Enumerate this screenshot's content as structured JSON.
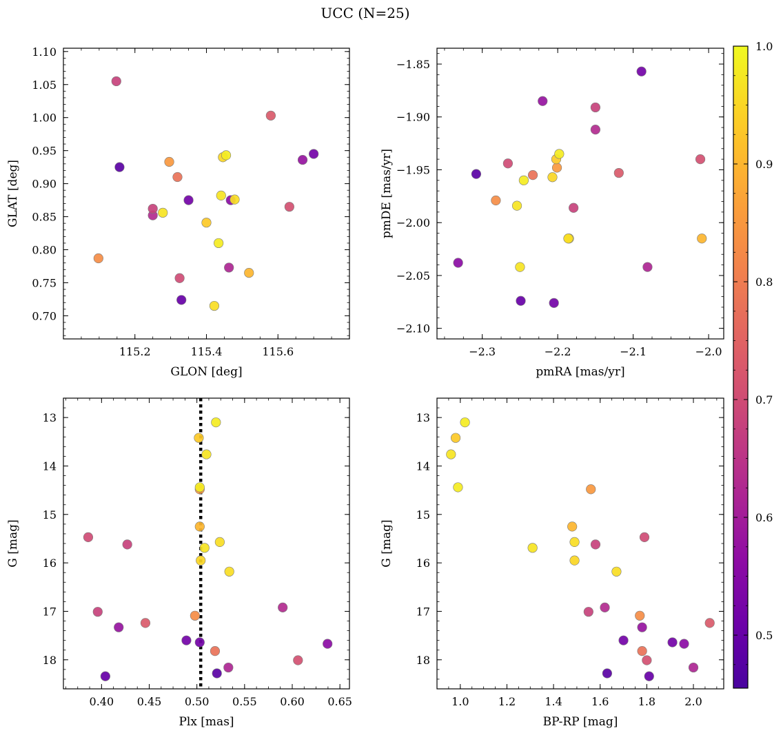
{
  "chart_data": {
    "type": "scatter",
    "title": "UCC (N=25)",
    "colorbar": {
      "colormap": "plasma",
      "range": [
        0.455,
        1.0
      ],
      "ticks": [
        0.5,
        0.6,
        0.7,
        0.8,
        0.9,
        1.0
      ],
      "tick_labels": [
        "0.5",
        "0.6",
        "0.7",
        "0.8",
        "0.9",
        "1.0"
      ],
      "label": ""
    },
    "members": [
      {
        "glon": 115.148,
        "glat": 1.055,
        "pmra": -2.15,
        "pmde": -1.891,
        "plx": 0.427,
        "g": 15.62,
        "bprp": 1.58,
        "prob": 0.68
      },
      {
        "glon": 115.157,
        "glat": 0.925,
        "pmra": -2.308,
        "pmde": -1.954,
        "plx": 0.521,
        "g": 18.28,
        "bprp": 1.63,
        "prob": 0.48
      },
      {
        "glon": 115.098,
        "glat": 0.787,
        "pmra": -2.282,
        "pmde": -1.979,
        "plx": 0.498,
        "g": 17.09,
        "bprp": 1.77,
        "prob": 0.83
      },
      {
        "glon": 115.25,
        "glat": 0.862,
        "pmra": -2.179,
        "pmde": -1.986,
        "plx": 0.396,
        "g": 17.01,
        "bprp": 1.55,
        "prob": 0.68
      },
      {
        "glon": 115.25,
        "glat": 0.852,
        "pmra": -2.15,
        "pmde": -1.912,
        "plx": 0.59,
        "g": 16.92,
        "bprp": 1.62,
        "prob": 0.63
      },
      {
        "glon": 115.278,
        "glat": 0.856,
        "pmra": -2.254,
        "pmde": -1.984,
        "plx": 0.51,
        "g": 13.76,
        "bprp": 0.96,
        "prob": 0.97
      },
      {
        "glon": 115.296,
        "glat": 0.933,
        "pmra": -2.201,
        "pmde": -1.948,
        "plx": 0.503,
        "g": 14.48,
        "bprp": 1.56,
        "prob": 0.85
      },
      {
        "glon": 115.319,
        "glat": 0.91,
        "pmra": -2.233,
        "pmde": -1.955,
        "plx": 0.519,
        "g": 17.82,
        "bprp": 1.78,
        "prob": 0.78
      },
      {
        "glon": 115.325,
        "glat": 0.757,
        "pmra": -2.266,
        "pmde": -1.944,
        "plx": 0.386,
        "g": 15.47,
        "bprp": 1.79,
        "prob": 0.7
      },
      {
        "glon": 115.33,
        "glat": 0.724,
        "pmra": -2.249,
        "pmde": -2.074,
        "plx": 0.404,
        "g": 18.34,
        "bprp": 1.81,
        "prob": 0.5
      },
      {
        "glon": 115.35,
        "glat": 0.875,
        "pmra": -2.205,
        "pmde": -2.076,
        "plx": 0.489,
        "g": 17.6,
        "bprp": 1.7,
        "prob": 0.52
      },
      {
        "glon": 115.4,
        "glat": 0.841,
        "pmra": -2.202,
        "pmde": -1.94,
        "plx": 0.502,
        "g": 13.42,
        "bprp": 0.98,
        "prob": 0.93
      },
      {
        "glon": 115.422,
        "glat": 0.715,
        "pmra": -2.185,
        "pmde": -2.015,
        "plx": 0.524,
        "g": 15.57,
        "bprp": 1.49,
        "prob": 0.96
      },
      {
        "glon": 115.434,
        "glat": 0.81,
        "pmra": -2.198,
        "pmde": -1.935,
        "plx": 0.52,
        "g": 13.1,
        "bprp": 1.02,
        "prob": 0.98
      },
      {
        "glon": 115.441,
        "glat": 0.882,
        "pmra": -2.25,
        "pmde": -2.042,
        "plx": 0.508,
        "g": 15.69,
        "bprp": 1.31,
        "prob": 0.97
      },
      {
        "glon": 115.446,
        "glat": 0.94,
        "pmra": -2.207,
        "pmde": -1.957,
        "plx": 0.504,
        "g": 15.95,
        "bprp": 1.49,
        "prob": 0.95
      },
      {
        "glon": 115.455,
        "glat": 0.943,
        "pmra": -2.245,
        "pmde": -1.96,
        "plx": 0.503,
        "g": 14.44,
        "bprp": 0.99,
        "prob": 0.98
      },
      {
        "glon": 115.463,
        "glat": 0.773,
        "pmra": -2.081,
        "pmde": -2.042,
        "plx": 0.533,
        "g": 18.16,
        "bprp": 2.0,
        "prob": 0.62
      },
      {
        "glon": 115.468,
        "glat": 0.875,
        "pmra": -2.332,
        "pmde": -2.038,
        "plx": 0.637,
        "g": 17.67,
        "bprp": 1.96,
        "prob": 0.56
      },
      {
        "glon": 115.479,
        "glat": 0.876,
        "pmra": -2.186,
        "pmde": -2.015,
        "plx": 0.534,
        "g": 16.18,
        "bprp": 1.67,
        "prob": 0.96
      },
      {
        "glon": 115.519,
        "glat": 0.765,
        "pmra": -2.009,
        "pmde": -2.015,
        "plx": 0.503,
        "g": 15.25,
        "bprp": 1.48,
        "prob": 0.9
      },
      {
        "glon": 115.58,
        "glat": 1.003,
        "pmra": -2.119,
        "pmde": -1.953,
        "plx": 0.446,
        "g": 17.24,
        "bprp": 2.07,
        "prob": 0.73
      },
      {
        "glon": 115.632,
        "glat": 0.865,
        "pmra": -2.011,
        "pmde": -1.94,
        "plx": 0.606,
        "g": 18.01,
        "bprp": 1.8,
        "prob": 0.71
      },
      {
        "glon": 115.669,
        "glat": 0.936,
        "pmra": -2.22,
        "pmde": -1.885,
        "plx": 0.418,
        "g": 17.33,
        "bprp": 1.78,
        "prob": 0.58
      },
      {
        "glon": 115.7,
        "glat": 0.945,
        "pmra": -2.089,
        "pmde": -1.857,
        "plx": 0.503,
        "g": 17.64,
        "bprp": 1.91,
        "prob": 0.52
      }
    ],
    "plx_median_line": 0.504,
    "panels": [
      {
        "id": "glon-glat",
        "type": "scatter",
        "x_field": "glon",
        "y_field": "glat",
        "xlabel": "GLON [deg]",
        "ylabel": "GLAT [deg]",
        "xlim": [
          115.0,
          115.8
        ],
        "ylim": [
          0.665,
          1.105
        ],
        "invert_y": false,
        "xticks": [
          115.2,
          115.4,
          115.6
        ],
        "xtick_labels": [
          "115.2",
          "115.4",
          "115.6"
        ],
        "yticks": [
          0.7,
          0.75,
          0.8,
          0.85,
          0.9,
          0.95,
          1.0,
          1.05,
          1.1
        ],
        "ytick_labels": [
          "0.70",
          "0.75",
          "0.80",
          "0.85",
          "0.90",
          "0.95",
          "1.00",
          "1.05",
          "1.10"
        ]
      },
      {
        "id": "pmra-pmde",
        "type": "scatter",
        "x_field": "pmra",
        "y_field": "pmde",
        "xlabel": "pmRA [mas/yr]",
        "ylabel": "pmDE [mas/yr]",
        "xlim": [
          -2.36,
          -1.98
        ],
        "ylim": [
          -2.11,
          -1.835
        ],
        "invert_y": false,
        "xticks": [
          -2.3,
          -2.2,
          -2.1,
          -2.0
        ],
        "xtick_labels": [
          "−2.3",
          "−2.2",
          "−2.1",
          "−2.0"
        ],
        "yticks": [
          -2.1,
          -2.05,
          -2.0,
          -1.95,
          -1.9,
          -1.85
        ],
        "ytick_labels": [
          "−2.10",
          "−2.05",
          "−2.00",
          "−1.95",
          "−1.90",
          "−1.85"
        ]
      },
      {
        "id": "plx-g",
        "type": "scatter",
        "x_field": "plx",
        "y_field": "g",
        "xlabel": "Plx [mas]",
        "ylabel": "G [mag]",
        "xlim": [
          0.36,
          0.66
        ],
        "ylim": [
          12.6,
          18.6
        ],
        "invert_y": true,
        "xticks": [
          0.4,
          0.45,
          0.5,
          0.55,
          0.6,
          0.65
        ],
        "xtick_labels": [
          "0.40",
          "0.45",
          "0.50",
          "0.55",
          "0.60",
          "0.65"
        ],
        "yticks": [
          13,
          14,
          15,
          16,
          17,
          18
        ],
        "ytick_labels": [
          "13",
          "14",
          "15",
          "16",
          "17",
          "18"
        ]
      },
      {
        "id": "bprp-g",
        "type": "scatter",
        "x_field": "bprp",
        "y_field": "g",
        "xlabel": "BP-RP [mag]",
        "ylabel": "G [mag]",
        "xlim": [
          0.9,
          2.13
        ],
        "ylim": [
          12.6,
          18.6
        ],
        "invert_y": true,
        "xticks": [
          1.0,
          1.2,
          1.4,
          1.6,
          1.8,
          2.0
        ],
        "xtick_labels": [
          "1.0",
          "1.2",
          "1.4",
          "1.6",
          "1.8",
          "2.0"
        ],
        "yticks": [
          13,
          14,
          15,
          16,
          17,
          18
        ],
        "ytick_labels": [
          "13",
          "14",
          "15",
          "16",
          "17",
          "18"
        ]
      }
    ]
  }
}
